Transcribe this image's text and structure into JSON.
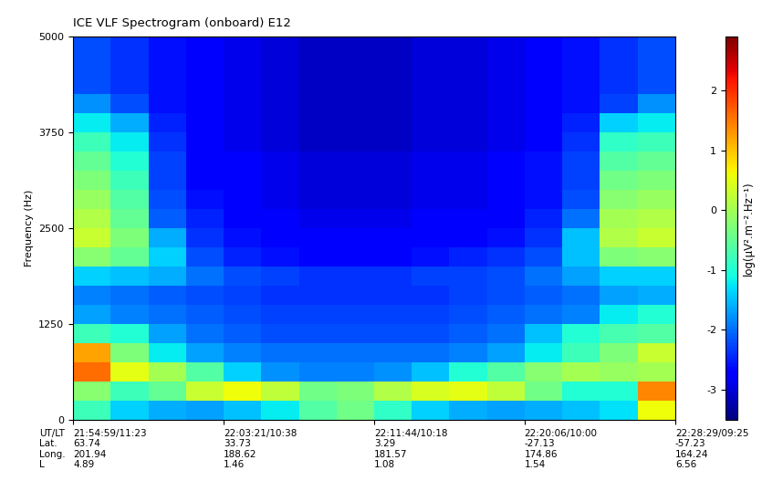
{
  "chart_data": {
    "type": "heatmap",
    "title": "ICE VLF Spectrogram (onboard) E12",
    "y_label": "Frequency (Hz)",
    "xlim": [
      0,
      2010
    ],
    "xticks": [
      {
        "value": 0,
        "label": "21:54:59/11:23\n63.74\n201.94\n4.89"
      },
      {
        "value": 502,
        "label": "22:03:21/10:38\n33.73\n188.62\n1.46"
      },
      {
        "value": 1005,
        "label": "22:11:44/10:18\n3.29\n181.57\n1.08"
      },
      {
        "value": 1507,
        "label": "22:20:06/10:00\n-27.13\n174.86\n1.54"
      },
      {
        "value": 2010,
        "label": "22:28:29/09:25\n-57.23\n164.24\n6.56"
      }
    ],
    "x_label_rows": [
      "UT/LT",
      "Lat.",
      "Long.",
      "L"
    ],
    "ylim": [
      0,
      5000
    ],
    "yticks": [
      0,
      1250,
      2500,
      3750,
      5000
    ],
    "color": "jet",
    "x_edges": [
      0,
      125.6,
      251.2,
      376.9,
      502.5,
      628.1,
      753.8,
      879.4,
      1005,
      1130.6,
      1256.2,
      1381.9,
      1507.5,
      1633.1,
      1758.8,
      1884.4,
      2010
    ],
    "y_edges": [
      0,
      250,
      500,
      750,
      1000,
      1250,
      1500,
      1750,
      2000,
      2250,
      2500,
      2750,
      3000,
      3250,
      3500,
      3750,
      4000,
      4250,
      4500,
      4750,
      5000
    ],
    "cells": [
      [
        -0.8,
        -1.4,
        -1.6,
        -1.7,
        -1.5,
        -1.2,
        -0.6,
        -0.4,
        -0.9,
        -1.4,
        -1.6,
        -1.7,
        -1.6,
        -1.5,
        -1.3,
        0.6
      ],
      [
        -0.2,
        -0.8,
        -0.5,
        0.3,
        0.6,
        0.2,
        -0.4,
        -0.3,
        0.1,
        0.4,
        0.5,
        0.2,
        -0.4,
        -1.0,
        -1.0,
        1.4
      ],
      [
        1.6,
        0.5,
        0.0,
        -0.6,
        -1.4,
        -1.8,
        -1.9,
        -1.9,
        -1.8,
        -1.5,
        -1.0,
        -0.6,
        -0.2,
        0.0,
        -0.1,
        0.0
      ],
      [
        1.2,
        -0.3,
        -1.2,
        -1.7,
        -1.9,
        -2.0,
        -2.0,
        -2.0,
        -2.0,
        -2.0,
        -1.9,
        -1.7,
        -1.2,
        -0.8,
        -0.3,
        0.3
      ],
      [
        -0.8,
        -1.0,
        -1.7,
        -2.0,
        -2.1,
        -2.2,
        -2.2,
        -2.2,
        -2.2,
        -2.2,
        -2.1,
        -2.0,
        -1.5,
        -1.0,
        -0.7,
        -0.6
      ],
      [
        -1.7,
        -1.9,
        -2.0,
        -2.1,
        -2.2,
        -2.3,
        -2.3,
        -2.3,
        -2.3,
        -2.3,
        -2.2,
        -2.1,
        -2.0,
        -1.9,
        -1.2,
        -1.0
      ],
      [
        -1.9,
        -2.0,
        -2.1,
        -2.2,
        -2.3,
        -2.4,
        -2.4,
        -2.4,
        -2.4,
        -2.4,
        -2.3,
        -2.2,
        -2.1,
        -2.0,
        -1.7,
        -1.6
      ],
      [
        -1.4,
        -1.5,
        -1.6,
        -2.0,
        -2.2,
        -2.3,
        -2.4,
        -2.4,
        -2.4,
        -2.3,
        -2.3,
        -2.2,
        -2.0,
        -1.7,
        -1.4,
        -1.4
      ],
      [
        -0.2,
        -0.5,
        -1.4,
        -2.2,
        -2.5,
        -2.6,
        -2.7,
        -2.7,
        -2.7,
        -2.6,
        -2.5,
        -2.4,
        -2.2,
        -1.5,
        -0.3,
        -0.2
      ],
      [
        0.3,
        -0.3,
        -1.6,
        -2.4,
        -2.6,
        -2.7,
        -2.8,
        -2.8,
        -2.8,
        -2.7,
        -2.7,
        -2.6,
        -2.4,
        -1.5,
        0.1,
        0.3
      ],
      [
        0.1,
        -0.5,
        -2.1,
        -2.5,
        -2.7,
        -2.8,
        -2.9,
        -2.9,
        -2.9,
        -2.8,
        -2.8,
        -2.7,
        -2.5,
        -2.0,
        0.0,
        0.1
      ],
      [
        -0.1,
        -0.6,
        -2.2,
        -2.6,
        -2.8,
        -2.9,
        -3.0,
        -3.0,
        -3.0,
        -2.9,
        -2.9,
        -2.8,
        -2.6,
        -2.2,
        -0.2,
        -0.1
      ],
      [
        -0.3,
        -0.8,
        -2.3,
        -2.7,
        -2.8,
        -2.9,
        -3.0,
        -3.0,
        -3.0,
        -2.9,
        -2.9,
        -2.8,
        -2.6,
        -2.3,
        -0.4,
        -0.3
      ],
      [
        -0.5,
        -1.0,
        -2.3,
        -2.7,
        -2.8,
        -2.9,
        -3.0,
        -3.0,
        -3.0,
        -2.9,
        -2.9,
        -2.8,
        -2.6,
        -2.3,
        -0.6,
        -0.5
      ],
      [
        -0.8,
        -1.2,
        -2.4,
        -2.8,
        -2.9,
        -3.0,
        -3.1,
        -3.1,
        -3.1,
        -3.0,
        -3.0,
        -2.9,
        -2.7,
        -2.4,
        -0.9,
        -0.8
      ],
      [
        -1.2,
        -1.6,
        -2.5,
        -2.8,
        -2.9,
        -3.0,
        -3.1,
        -3.1,
        -3.1,
        -3.0,
        -3.0,
        -2.9,
        -2.8,
        -2.5,
        -1.4,
        -1.2
      ],
      [
        -1.8,
        -2.2,
        -2.6,
        -2.8,
        -2.9,
        -3.0,
        -3.1,
        -3.1,
        -3.1,
        -3.0,
        -3.0,
        -2.9,
        -2.8,
        -2.6,
        -2.3,
        -1.8
      ],
      [
        -2.2,
        -2.4,
        -2.6,
        -2.8,
        -2.9,
        -3.0,
        -3.1,
        -3.1,
        -3.1,
        -3.0,
        -3.0,
        -2.9,
        -2.8,
        -2.6,
        -2.4,
        -2.2
      ],
      [
        -2.2,
        -2.4,
        -2.6,
        -2.8,
        -2.9,
        -3.0,
        -3.1,
        -3.1,
        -3.1,
        -3.0,
        -3.0,
        -2.9,
        -2.8,
        -2.6,
        -2.4,
        -2.2
      ],
      [
        -2.2,
        -2.4,
        -2.6,
        -2.8,
        -2.9,
        -3.0,
        -3.1,
        -3.1,
        -3.1,
        -3.0,
        -3.0,
        -2.9,
        -2.8,
        -2.6,
        -2.4,
        -2.2
      ]
    ],
    "colorbar": {
      "label": "log(µV².m⁻².Hz⁻¹)",
      "range": [
        -3.5,
        2.9
      ],
      "ticks": [
        -3,
        -2,
        -1,
        0,
        1,
        2
      ]
    }
  }
}
